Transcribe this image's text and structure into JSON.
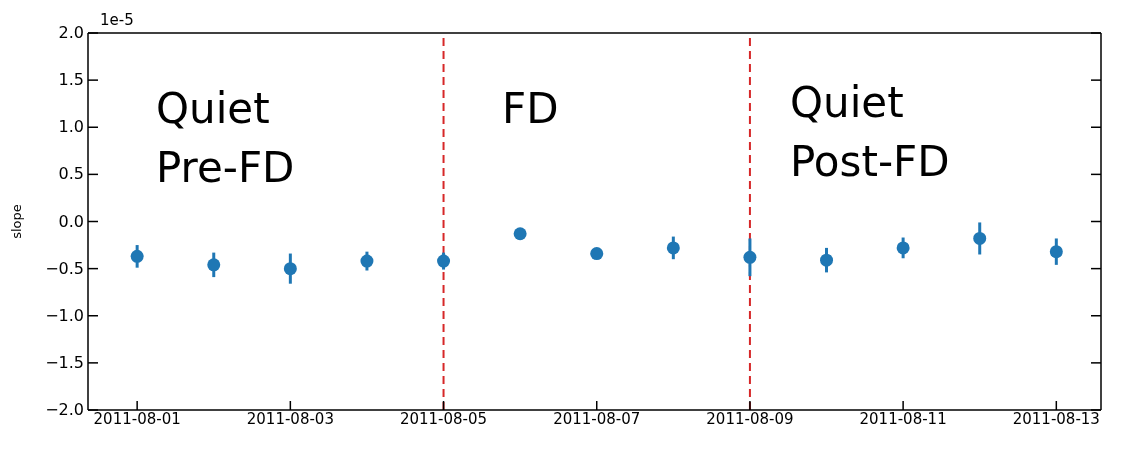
{
  "chart_data": {
    "type": "scatter",
    "ylabel": "slope",
    "x": [
      "2011-08-01",
      "2011-08-02",
      "2011-08-03",
      "2011-08-04",
      "2011-08-05",
      "2011-08-06",
      "2011-08-07",
      "2011-08-08",
      "2011-08-09",
      "2011-08-10",
      "2011-08-11",
      "2011-08-12",
      "2011-08-13"
    ],
    "series": [
      {
        "color": "#1f77b4",
        "values": [
          -0.37,
          -0.46,
          -0.5,
          -0.42,
          -0.42,
          -0.13,
          -0.34,
          -0.28,
          -0.38,
          -0.41,
          -0.28,
          -0.18,
          -0.32
        ],
        "errors": [
          0.12,
          0.13,
          0.16,
          0.1,
          0.09,
          null,
          null,
          0.12,
          0.2,
          0.13,
          0.11,
          0.17,
          0.14
        ]
      }
    ],
    "marker": "circle",
    "xlim": [
      "2011-07-31T08:36",
      "2011-08-13T14:00"
    ],
    "xticks": [
      "2011-08-01",
      "2011-08-03",
      "2011-08-05",
      "2011-08-07",
      "2011-08-09",
      "2011-08-11",
      "2011-08-13"
    ],
    "ylim": [
      -2.0,
      2.0
    ],
    "yticks": [
      {
        "value": -2.0,
        "label": "−2.0"
      },
      {
        "value": -1.5,
        "label": "−1.5"
      },
      {
        "value": -1.0,
        "label": "−1.0"
      },
      {
        "value": -0.5,
        "label": "−0.5"
      },
      {
        "value": 0.0,
        "label": "0.0"
      },
      {
        "value": 0.5,
        "label": "0.5"
      },
      {
        "value": 1.0,
        "label": "1.0"
      },
      {
        "value": 1.5,
        "label": "1.5"
      },
      {
        "value": 2.0,
        "label": "2.0"
      }
    ],
    "ref_lines": [
      {
        "axis": "x",
        "value": "2011-08-05",
        "color": "#d62728",
        "line_style": "dashed"
      },
      {
        "axis": "x",
        "value": "2011-08-09",
        "color": "#d62728",
        "line_style": "dashed"
      }
    ],
    "annotations": [
      "1e-5",
      "Quiet\nPre-FD",
      "FD",
      "Quiet\nPost-FD"
    ],
    "grid": false,
    "legend": false
  }
}
